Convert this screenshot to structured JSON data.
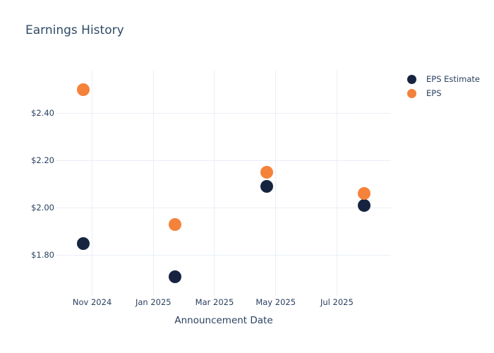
{
  "colors": {
    "background": "#ffffff",
    "gridline": "#e9eef6",
    "text": "#2a3f5f",
    "title": "#2e4a66",
    "eps_estimate": "#162440",
    "eps": "#f5823a"
  },
  "chart_data": {
    "type": "scatter",
    "title": "Earnings History",
    "xlabel": "Announcement Date",
    "ylabel": "",
    "legend_position": "right",
    "grid": true,
    "marker_size_px": 18,
    "x_tick_labels": [
      "Nov 2024",
      "Jan 2025",
      "Mar 2025",
      "May 2025",
      "Jul 2025"
    ],
    "x_tick_dates": [
      "2024-11-01",
      "2025-01-01",
      "2025-03-01",
      "2025-05-01",
      "2025-07-01"
    ],
    "y_tick_labels": [
      "$2.40",
      "$2.20",
      "$2.00",
      "$1.80"
    ],
    "y_ticks": [
      2.4,
      2.2,
      2.0,
      1.8
    ],
    "x_range_dates": [
      "2024-09-26",
      "2025-08-24"
    ],
    "y_range": [
      1.64,
      2.58
    ],
    "series": [
      {
        "name": "EPS Estimate",
        "color": "#162440",
        "points": [
          {
            "date": "2024-10-22",
            "value": 1.85
          },
          {
            "date": "2025-01-22",
            "value": 1.71
          },
          {
            "date": "2025-04-22",
            "value": 2.09
          },
          {
            "date": "2025-07-28",
            "value": 2.01
          }
        ]
      },
      {
        "name": "EPS",
        "color": "#f5823a",
        "points": [
          {
            "date": "2024-10-22",
            "value": 2.5
          },
          {
            "date": "2025-01-22",
            "value": 1.93
          },
          {
            "date": "2025-04-22",
            "value": 2.15
          },
          {
            "date": "2025-07-28",
            "value": 2.06
          }
        ]
      }
    ]
  }
}
